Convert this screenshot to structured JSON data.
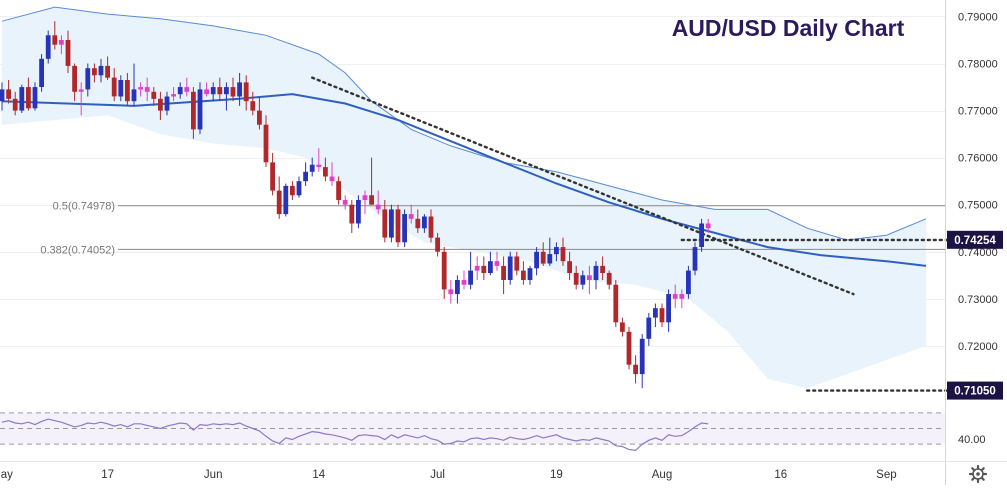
{
  "chart_data": {
    "type": "candlestick",
    "title": "AUD/USD Daily Chart",
    "colors": {
      "title": "#2b1a5e",
      "bullish_candle": "#2733b8",
      "bearish_candle": "#b0282c",
      "doji_candle": "#e040c8",
      "moving_average": "#2f5fbf",
      "bollinger_band": "#5a8ad6",
      "band_fill": "#e6f2fb",
      "trendline": "#333333",
      "fib_line": "#888888",
      "rsi_line": "#8c78c8",
      "price_tag_bg": "#1c1244"
    },
    "price_axis": {
      "ylim": [
        0.7085,
        0.7935
      ],
      "ticks": [
        "0.79000",
        "0.78000",
        "0.77000",
        "0.76000",
        "0.75000",
        "0.74000",
        "0.73000",
        "0.72000"
      ]
    },
    "date_axis": {
      "labels": [
        "May",
        "17",
        "Jun",
        "14",
        "Jul",
        "19",
        "Aug",
        "16",
        "Sep"
      ],
      "label_bar_index": [
        0,
        16,
        32,
        48,
        66,
        84,
        100,
        118,
        134
      ]
    },
    "candles": [
      [
        0.772,
        0.776,
        0.77,
        0.7745
      ],
      [
        0.7745,
        0.7765,
        0.7715,
        0.7725
      ],
      [
        0.7725,
        0.774,
        0.769,
        0.77
      ],
      [
        0.77,
        0.7755,
        0.7695,
        0.775
      ],
      [
        0.775,
        0.777,
        0.77,
        0.7705
      ],
      [
        0.7705,
        0.776,
        0.77,
        0.775
      ],
      [
        0.775,
        0.782,
        0.774,
        0.781
      ],
      [
        0.781,
        0.787,
        0.78,
        0.786
      ],
      [
        0.786,
        0.789,
        0.783,
        0.784
      ],
      [
        0.784,
        0.786,
        0.782,
        0.785
      ],
      [
        0.785,
        0.787,
        0.778,
        0.7795
      ],
      [
        0.7795,
        0.78,
        0.772,
        0.774
      ],
      [
        0.774,
        0.776,
        0.769,
        0.7745
      ],
      [
        0.7745,
        0.78,
        0.773,
        0.779
      ],
      [
        0.779,
        0.78,
        0.776,
        0.7775
      ],
      [
        0.7775,
        0.781,
        0.776,
        0.7795
      ],
      [
        0.7795,
        0.7815,
        0.7765,
        0.777
      ],
      [
        0.777,
        0.779,
        0.772,
        0.773
      ],
      [
        0.773,
        0.7775,
        0.772,
        0.7765
      ],
      [
        0.7765,
        0.778,
        0.771,
        0.772
      ],
      [
        0.772,
        0.78,
        0.771,
        0.7745
      ],
      [
        0.7745,
        0.776,
        0.773,
        0.775
      ],
      [
        0.775,
        0.777,
        0.772,
        0.774
      ],
      [
        0.774,
        0.775,
        0.771,
        0.7725
      ],
      [
        0.7725,
        0.774,
        0.768,
        0.77
      ],
      [
        0.77,
        0.774,
        0.769,
        0.773
      ],
      [
        0.773,
        0.775,
        0.772,
        0.7735
      ],
      [
        0.7735,
        0.776,
        0.7725,
        0.775
      ],
      [
        0.775,
        0.777,
        0.773,
        0.774
      ],
      [
        0.774,
        0.775,
        0.764,
        0.766
      ],
      [
        0.766,
        0.776,
        0.765,
        0.7745
      ],
      [
        0.7745,
        0.776,
        0.773,
        0.7735
      ],
      [
        0.7735,
        0.776,
        0.772,
        0.775
      ],
      [
        0.775,
        0.777,
        0.772,
        0.7735
      ],
      [
        0.7735,
        0.776,
        0.77,
        0.775
      ],
      [
        0.775,
        0.777,
        0.772,
        0.773
      ],
      [
        0.773,
        0.778,
        0.771,
        0.776
      ],
      [
        0.776,
        0.7775,
        0.77,
        0.772
      ],
      [
        0.772,
        0.774,
        0.769,
        0.77
      ],
      [
        0.77,
        0.773,
        0.766,
        0.767
      ],
      [
        0.767,
        0.769,
        0.758,
        0.759
      ],
      [
        0.759,
        0.761,
        0.752,
        0.753
      ],
      [
        0.753,
        0.756,
        0.747,
        0.748
      ],
      [
        0.748,
        0.7545,
        0.7475,
        0.754
      ],
      [
        0.754,
        0.755,
        0.751,
        0.752
      ],
      [
        0.752,
        0.756,
        0.7515,
        0.755
      ],
      [
        0.755,
        0.759,
        0.754,
        0.757
      ],
      [
        0.757,
        0.76,
        0.756,
        0.7585
      ],
      [
        0.7585,
        0.762,
        0.757,
        0.758
      ],
      [
        0.758,
        0.76,
        0.755,
        0.756
      ],
      [
        0.756,
        0.759,
        0.754,
        0.755
      ],
      [
        0.755,
        0.756,
        0.75,
        0.751
      ],
      [
        0.751,
        0.752,
        0.749,
        0.75
      ],
      [
        0.75,
        0.751,
        0.744,
        0.746
      ],
      [
        0.746,
        0.752,
        0.745,
        0.751
      ],
      [
        0.751,
        0.753,
        0.748,
        0.752
      ],
      [
        0.752,
        0.76,
        0.75,
        0.75
      ],
      [
        0.75,
        0.753,
        0.748,
        0.749
      ],
      [
        0.749,
        0.751,
        0.742,
        0.743
      ],
      [
        0.743,
        0.75,
        0.742,
        0.749
      ],
      [
        0.749,
        0.75,
        0.741,
        0.742
      ],
      [
        0.742,
        0.749,
        0.741,
        0.748
      ],
      [
        0.748,
        0.75,
        0.746,
        0.747
      ],
      [
        0.747,
        0.749,
        0.744,
        0.745
      ],
      [
        0.745,
        0.748,
        0.744,
        0.7475
      ],
      [
        0.7475,
        0.749,
        0.742,
        0.743
      ],
      [
        0.743,
        0.744,
        0.739,
        0.74
      ],
      [
        0.74,
        0.741,
        0.73,
        0.732
      ],
      [
        0.732,
        0.734,
        0.729,
        0.731
      ],
      [
        0.731,
        0.735,
        0.729,
        0.734
      ],
      [
        0.734,
        0.736,
        0.732,
        0.733
      ],
      [
        0.733,
        0.74,
        0.732,
        0.736
      ],
      [
        0.736,
        0.739,
        0.734,
        0.737
      ],
      [
        0.737,
        0.739,
        0.734,
        0.7355
      ],
      [
        0.7355,
        0.74,
        0.735,
        0.738
      ],
      [
        0.738,
        0.74,
        0.736,
        0.737
      ],
      [
        0.737,
        0.739,
        0.731,
        0.734
      ],
      [
        0.734,
        0.74,
        0.733,
        0.739
      ],
      [
        0.739,
        0.74,
        0.735,
        0.736
      ],
      [
        0.736,
        0.738,
        0.733,
        0.734
      ],
      [
        0.734,
        0.737,
        0.733,
        0.7365
      ],
      [
        0.7365,
        0.741,
        0.735,
        0.74
      ],
      [
        0.74,
        0.742,
        0.737,
        0.7375
      ],
      [
        0.7375,
        0.743,
        0.737,
        0.7395
      ],
      [
        0.7395,
        0.742,
        0.738,
        0.741
      ],
      [
        0.741,
        0.743,
        0.737,
        0.738
      ],
      [
        0.738,
        0.74,
        0.734,
        0.7355
      ],
      [
        0.7355,
        0.737,
        0.732,
        0.733
      ],
      [
        0.733,
        0.736,
        0.732,
        0.735
      ],
      [
        0.735,
        0.737,
        0.731,
        0.734
      ],
      [
        0.734,
        0.738,
        0.732,
        0.737
      ],
      [
        0.737,
        0.739,
        0.734,
        0.7355
      ],
      [
        0.7355,
        0.736,
        0.732,
        0.733
      ],
      [
        0.733,
        0.734,
        0.724,
        0.725
      ],
      [
        0.725,
        0.726,
        0.722,
        0.723
      ],
      [
        0.723,
        0.724,
        0.715,
        0.716
      ],
      [
        0.716,
        0.718,
        0.712,
        0.714
      ],
      [
        0.714,
        0.7225,
        0.711,
        0.7215
      ],
      [
        0.7215,
        0.727,
        0.72,
        0.726
      ],
      [
        0.726,
        0.729,
        0.724,
        0.728
      ],
      [
        0.728,
        0.729,
        0.724,
        0.725
      ],
      [
        0.725,
        0.732,
        0.723,
        0.731
      ],
      [
        0.731,
        0.733,
        0.728,
        0.73
      ],
      [
        0.73,
        0.732,
        0.728,
        0.731
      ],
      [
        0.731,
        0.737,
        0.73,
        0.736
      ],
      [
        0.736,
        0.742,
        0.735,
        0.741
      ],
      [
        0.741,
        0.747,
        0.74,
        0.746
      ],
      [
        0.746,
        0.747,
        0.744,
        0.745
      ]
    ],
    "moving_average": [
      [
        0,
        0.772
      ],
      [
        20,
        0.771
      ],
      [
        36,
        0.7725
      ],
      [
        44,
        0.7735
      ],
      [
        52,
        0.7715
      ],
      [
        60,
        0.768
      ],
      [
        68,
        0.7635
      ],
      [
        76,
        0.759
      ],
      [
        84,
        0.7545
      ],
      [
        92,
        0.7505
      ],
      [
        100,
        0.747
      ],
      [
        108,
        0.744
      ],
      [
        116,
        0.741
      ],
      [
        124,
        0.7393
      ],
      [
        134,
        0.738
      ],
      [
        140,
        0.737
      ]
    ],
    "bollinger_upper": [
      [
        0,
        0.789
      ],
      [
        8,
        0.792
      ],
      [
        16,
        0.7905
      ],
      [
        24,
        0.7895
      ],
      [
        32,
        0.788
      ],
      [
        40,
        0.786
      ],
      [
        48,
        0.782
      ],
      [
        52,
        0.778
      ],
      [
        56,
        0.772
      ],
      [
        62,
        0.766
      ],
      [
        68,
        0.7625
      ],
      [
        76,
        0.759
      ],
      [
        84,
        0.757
      ],
      [
        92,
        0.754
      ],
      [
        100,
        0.751
      ],
      [
        108,
        0.749
      ],
      [
        116,
        0.749
      ],
      [
        122,
        0.745
      ],
      [
        128,
        0.7425
      ],
      [
        134,
        0.7435
      ],
      [
        140,
        0.747
      ]
    ],
    "bollinger_lower": [
      [
        0,
        0.767
      ],
      [
        8,
        0.768
      ],
      [
        16,
        0.769
      ],
      [
        24,
        0.765
      ],
      [
        32,
        0.763
      ],
      [
        40,
        0.762
      ],
      [
        46,
        0.76
      ],
      [
        52,
        0.753
      ],
      [
        58,
        0.747
      ],
      [
        64,
        0.742
      ],
      [
        72,
        0.74
      ],
      [
        80,
        0.738
      ],
      [
        88,
        0.734
      ],
      [
        96,
        0.733
      ],
      [
        104,
        0.73
      ],
      [
        110,
        0.723
      ],
      [
        116,
        0.713
      ],
      [
        122,
        0.711
      ],
      [
        128,
        0.714
      ],
      [
        134,
        0.717
      ],
      [
        140,
        0.72
      ]
    ],
    "trendlines": [
      {
        "from": [
          47,
          0.777
        ],
        "to": [
          129,
          0.731
        ]
      },
      {
        "from": [
          103,
          0.7425
        ],
        "to": [
          147,
          0.7425
        ]
      },
      {
        "from": [
          122,
          0.7105
        ],
        "to": [
          147,
          0.7105
        ]
      }
    ],
    "fibonacci": [
      {
        "label": "0.5(0.74978)",
        "value": 0.74978
      },
      {
        "label": "0.382(0.74052)",
        "value": 0.74052
      }
    ],
    "price_tags": [
      {
        "label": "0.74254",
        "value": 0.74254
      },
      {
        "label": "0.71050",
        "value": 0.7105
      }
    ],
    "rsi": {
      "tick_label": "40.00",
      "ylim": [
        20,
        80
      ],
      "levels": [
        70,
        50,
        30
      ],
      "values": [
        58,
        60,
        57,
        56,
        58,
        55,
        59,
        62,
        60,
        58,
        55,
        52,
        54,
        57,
        56,
        58,
        56,
        53,
        55,
        52,
        56,
        56,
        54,
        52,
        50,
        53,
        55,
        57,
        56,
        48,
        55,
        54,
        56,
        55,
        56,
        55,
        57,
        53,
        50,
        47,
        40,
        34,
        31,
        38,
        36,
        40,
        43,
        46,
        45,
        43,
        42,
        40,
        38,
        35,
        41,
        42,
        41,
        40,
        36,
        42,
        38,
        42,
        40,
        38,
        41,
        37,
        35,
        30,
        31,
        34,
        33,
        37,
        38,
        36,
        38,
        37,
        35,
        39,
        37,
        36,
        38,
        41,
        38,
        40,
        42,
        38,
        36,
        34,
        36,
        35,
        38,
        36,
        34,
        28,
        27,
        23,
        22,
        30,
        35,
        38,
        35,
        42,
        40,
        41,
        46,
        52,
        57,
        56
      ]
    }
  }
}
